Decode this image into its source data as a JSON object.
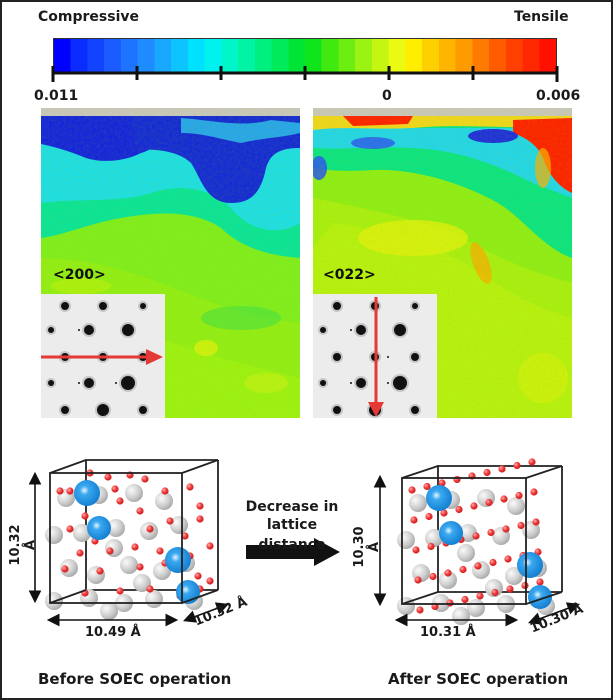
{
  "colorbar": {
    "left_title": "Compressive",
    "right_title": "Tensile",
    "tick_labels": {
      "left": "0.011",
      "center": "0",
      "right": "0.006"
    },
    "tick_count": 7,
    "colors": [
      "#0000ff",
      "#0a2cff",
      "#1244ff",
      "#1a5cff",
      "#1f74ff",
      "#1e8cff",
      "#19a8ff",
      "#0ec4ff",
      "#00e0ff",
      "#00f2ee",
      "#00f5c8",
      "#00f4a4",
      "#00f080",
      "#00ea5a",
      "#00e436",
      "#10e41a",
      "#40ea10",
      "#6cef10",
      "#9af312",
      "#c4f612",
      "#eafa10",
      "#ffee00",
      "#ffd000",
      "#ffb400",
      "#ff9a00",
      "#ff7a00",
      "#ff5c00",
      "#ff4000",
      "#ff2800",
      "#ff1000"
    ]
  },
  "maps": [
    {
      "id": "left",
      "orientation_label": "<200>",
      "arrow_direction": "horizontal"
    },
    {
      "id": "right",
      "orientation_label": "<022>",
      "arrow_direction": "vertical"
    }
  ],
  "arrow_text": {
    "line1": "Decrease in",
    "line2": "lattice distance"
  },
  "structures": {
    "before": {
      "caption": "Before SOEC operation",
      "height": "10.32 Å",
      "width": "10.49 Å",
      "depth": "10.32 Å"
    },
    "after": {
      "caption": "After SOEC operation",
      "height": "10.30 Å",
      "width": "10.31 Å",
      "depth": "10.30 Å"
    }
  },
  "colors": {
    "blue_atom": "#1e90e6",
    "gray_atom": "#c8c8c8",
    "red_atom": "#e83030",
    "arrow_red": "#e53935"
  }
}
